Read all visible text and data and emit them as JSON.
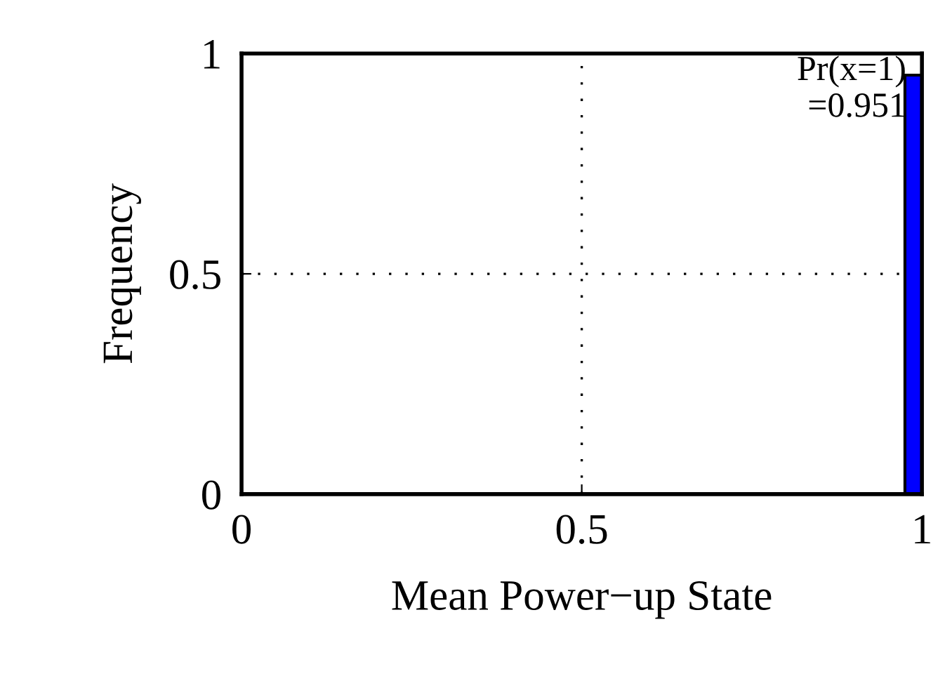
{
  "chart_data": {
    "type": "histogram",
    "xlabel": "Mean Power−up State",
    "ylabel": "Frequency",
    "bins": [
      0,
      0.025,
      0.05,
      0.075,
      0.1,
      0.125,
      0.15,
      0.175,
      0.2,
      0.225,
      0.25,
      0.275,
      0.3,
      0.325,
      0.35,
      0.375,
      0.4,
      0.425,
      0.45,
      0.475,
      0.5,
      0.525,
      0.55,
      0.575,
      0.6,
      0.625,
      0.65,
      0.675,
      0.7,
      0.725,
      0.75,
      0.775,
      0.8,
      0.825,
      0.85,
      0.875,
      0.9,
      0.925,
      0.95,
      0.975,
      1
    ],
    "values": [
      null,
      null,
      null,
      null,
      null,
      null,
      null,
      null,
      null,
      null,
      null,
      null,
      null,
      null,
      null,
      null,
      null,
      null,
      null,
      null,
      null,
      null,
      null,
      null,
      null,
      null,
      null,
      null,
      null,
      null,
      null,
      null,
      null,
      null,
      null,
      null,
      null,
      null,
      null,
      0.951
    ],
    "colors": [
      "#ffffff",
      "#ffffff",
      "#ffffff",
      "#ffffff",
      "#ffffff",
      "#ffffff",
      "#ffffff",
      "#ffffff",
      "#ffffff",
      "#ffffff",
      "#ffffff",
      "#ffffff",
      "#ffffff",
      "#ffffff",
      "#ffffff",
      "#ffffff",
      "#ffffff",
      "#ffffff",
      "#ffffff",
      "#ffffff",
      "#ffffff",
      "#ffffff",
      "#ffffff",
      "#ffffff",
      "#ffffff",
      "#ffffff",
      "#ffffff",
      "#ffffff",
      "#ffffff",
      "#ffffff",
      "#ffffff",
      "#ffffff",
      "#ffffff",
      "#ffffff",
      "#ffffff",
      "#ffffff",
      "#ffffff",
      "#ffffff",
      "#ffffff",
      "#0000ff"
    ],
    "xlim": [
      0,
      1
    ],
    "ylim": [
      0,
      1
    ],
    "xticks": [
      0,
      0.5,
      1
    ],
    "yticks": [
      0,
      0.5,
      1
    ],
    "grid": true,
    "annotations": [
      {
        "text": "Pr(x=1)\n=0.951",
        "x": 1,
        "y": 0.951
      }
    ]
  }
}
